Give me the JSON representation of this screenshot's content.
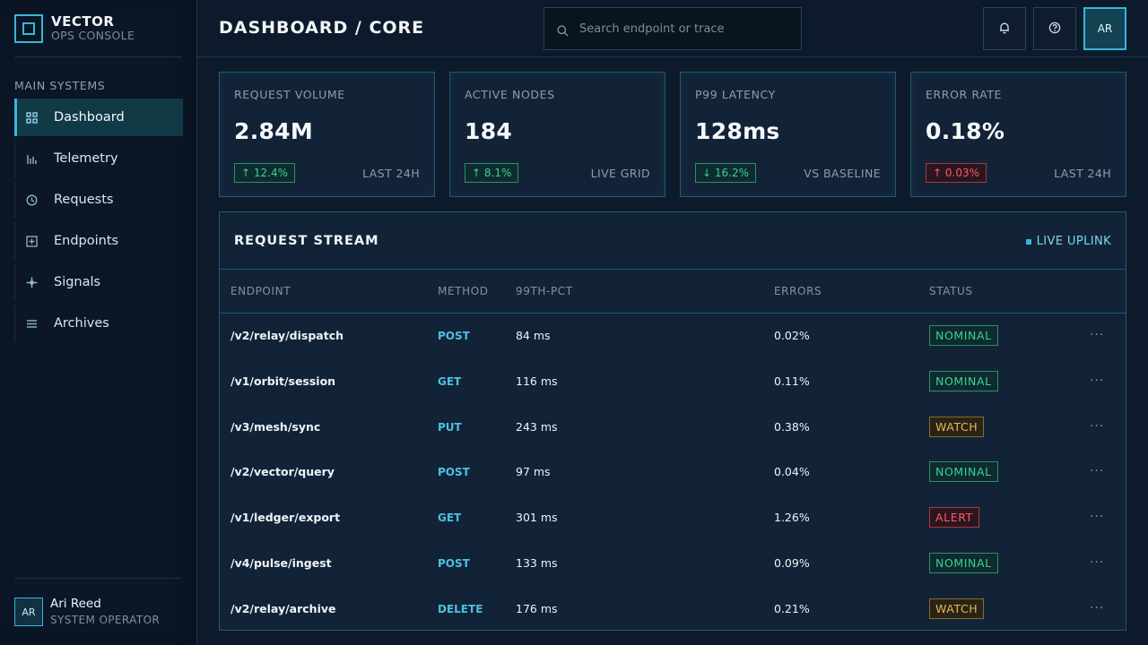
{
  "brand": {
    "name": "VECTOR",
    "subtitle": "OPS CONSOLE"
  },
  "sidebar": {
    "section_label": "MAIN SYSTEMS",
    "items": [
      {
        "label": "Dashboard",
        "icon": "grid-icon",
        "active": true
      },
      {
        "label": "Telemetry",
        "icon": "bar-chart-icon"
      },
      {
        "label": "Requests",
        "icon": "clock-icon"
      },
      {
        "label": "Endpoints",
        "icon": "plus-box-icon"
      },
      {
        "label": "Signals",
        "icon": "crosshair-icon"
      },
      {
        "label": "Archives",
        "icon": "list-icon"
      }
    ]
  },
  "user": {
    "initials": "AR",
    "name": "Ari Reed",
    "role": "SYSTEM OPERATOR"
  },
  "header": {
    "title": "DASHBOARD / CORE",
    "search_placeholder": "Search endpoint or trace",
    "avatar_initials": "AR"
  },
  "stats": [
    {
      "label": "REQUEST VOLUME",
      "value": "2.84M",
      "delta": "↑ 12.4%",
      "trend": "good",
      "note": "LAST 24H"
    },
    {
      "label": "ACTIVE NODES",
      "value": "184",
      "delta": "↑ 8.1%",
      "trend": "good",
      "note": "LIVE GRID"
    },
    {
      "label": "P99 LATENCY",
      "value": "128ms",
      "delta": "↓ 16.2%",
      "trend": "good",
      "note": "VS BASELINE"
    },
    {
      "label": "ERROR RATE",
      "value": "0.18%",
      "delta": "↑ 0.03%",
      "trend": "bad",
      "note": "LAST 24H"
    }
  ],
  "stream": {
    "title": "REQUEST STREAM",
    "live_label": "LIVE UPLINK",
    "columns": [
      "ENDPOINT",
      "METHOD",
      "99TH-PCT",
      "ERRORS",
      "STATUS"
    ],
    "rows": [
      {
        "endpoint": "/v2/relay/dispatch",
        "method": "POST",
        "p99": "84 ms",
        "errors": "0.02%",
        "status": "NOMINAL"
      },
      {
        "endpoint": "/v1/orbit/session",
        "method": "GET",
        "p99": "116 ms",
        "errors": "0.11%",
        "status": "NOMINAL"
      },
      {
        "endpoint": "/v3/mesh/sync",
        "method": "PUT",
        "p99": "243 ms",
        "errors": "0.38%",
        "status": "WATCH"
      },
      {
        "endpoint": "/v2/vector/query",
        "method": "POST",
        "p99": "97 ms",
        "errors": "0.04%",
        "status": "NOMINAL"
      },
      {
        "endpoint": "/v1/ledger/export",
        "method": "GET",
        "p99": "301 ms",
        "errors": "1.26%",
        "status": "ALERT"
      },
      {
        "endpoint": "/v4/pulse/ingest",
        "method": "POST",
        "p99": "133 ms",
        "errors": "0.09%",
        "status": "NOMINAL"
      },
      {
        "endpoint": "/v2/relay/archive",
        "method": "DELETE",
        "p99": "176 ms",
        "errors": "0.21%",
        "status": "WATCH"
      }
    ],
    "row_menu": "···"
  },
  "colors": {
    "accent": "#38b6d8",
    "good": "#35d39a",
    "warn": "#e6b84a",
    "bad": "#ff5a5f",
    "background": "#0d1a2b"
  }
}
